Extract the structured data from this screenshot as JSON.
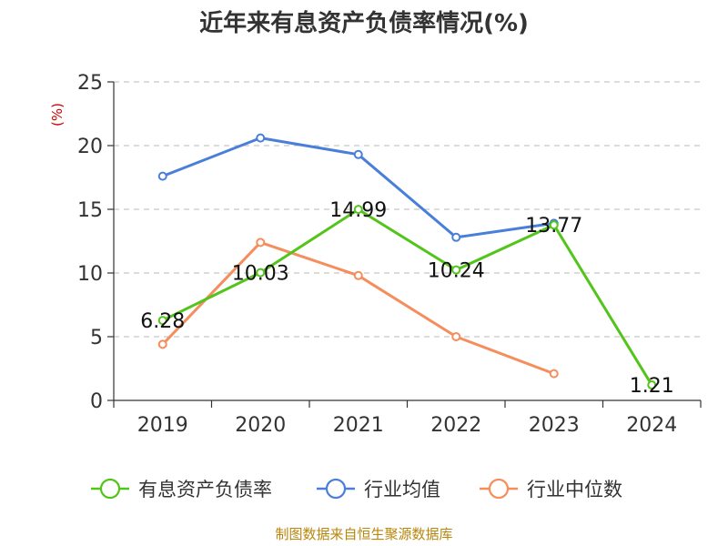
{
  "chart_data": {
    "type": "line",
    "title": "近年来有息资产负债率情况(%)",
    "ylabel": "(%)",
    "xlabel": "",
    "categories": [
      "2019",
      "2020",
      "2021",
      "2022",
      "2023",
      "2024"
    ],
    "ylim": [
      0,
      25
    ],
    "yticks": [
      0,
      5,
      10,
      15,
      20,
      25
    ],
    "grid": true,
    "legend_position": "bottom",
    "series": [
      {
        "name": "有息资产负债率",
        "color": "#52c41a",
        "values": [
          6.28,
          10.03,
          14.99,
          10.24,
          13.77,
          1.21
        ],
        "labels": [
          "6.28",
          "10.03",
          "14.99",
          "10.24",
          "13.77",
          "1.21"
        ]
      },
      {
        "name": "行业均值",
        "color": "#4a7fd9",
        "values": [
          17.6,
          20.6,
          19.3,
          12.8,
          13.9,
          null
        ]
      },
      {
        "name": "行业中位数",
        "color": "#f58d5c",
        "values": [
          4.4,
          12.4,
          9.8,
          5.0,
          2.1,
          null
        ]
      }
    ],
    "source": "制图数据来自恒生聚源数据库"
  }
}
